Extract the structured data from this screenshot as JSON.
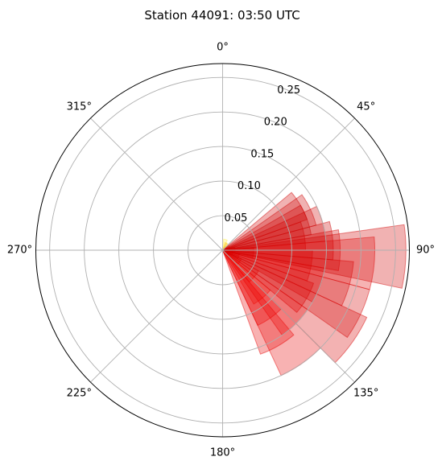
{
  "chart_data": {
    "type": "polar_bar",
    "title": "Station 44091: 03:50 UTC",
    "theta_zero": "N",
    "theta_direction": "clockwise",
    "theta_tick_labels": [
      "0°",
      "45°",
      "90°",
      "135°",
      "180°",
      "225°",
      "270°",
      "315°"
    ],
    "r_ticks": [
      0.05,
      0.1,
      0.15,
      0.2,
      0.25
    ],
    "r_tick_labels": [
      "0.05",
      "0.10",
      "0.15",
      "0.20",
      "0.25"
    ],
    "rlim": [
      0,
      0.27
    ],
    "r_label_angle_deg": 22.5,
    "grid": true,
    "bar_width_deg": 20,
    "bar_alpha": 0.3,
    "bars": [
      {
        "theta": 45,
        "r": 0.007,
        "color": "#ffd21e"
      },
      {
        "theta": 25,
        "r": 0.012,
        "color": "#ffe030"
      },
      {
        "theta": 15,
        "r": 0.016,
        "color": "#fff050"
      },
      {
        "theta": 35,
        "r": 0.011,
        "color": "#ffc020"
      },
      {
        "theta": 60,
        "r": 0.011,
        "color": "#ff9a10"
      },
      {
        "theta": 75,
        "r": 0.01,
        "color": "#ff6a08"
      },
      {
        "theta": 120,
        "r": 0.012,
        "color": "#ff5a00"
      },
      {
        "theta": 100,
        "r": 0.015,
        "color": "#ff3a00"
      },
      {
        "theta": 85,
        "r": 0.018,
        "color": "#ff2a00"
      },
      {
        "theta": 110,
        "r": 0.025,
        "color": "#ff2000"
      },
      {
        "theta": 125,
        "r": 0.03,
        "color": "#ff1800"
      },
      {
        "theta": 95,
        "r": 0.045,
        "color": "#e00000"
      },
      {
        "theta": 130,
        "r": 0.06,
        "color": "#ff1000"
      },
      {
        "theta": 140,
        "r": 0.09,
        "color": "#ff1500"
      },
      {
        "theta": 145,
        "r": 0.12,
        "color": "#f00000"
      },
      {
        "theta": 150,
        "r": 0.16,
        "color": "#e80000"
      },
      {
        "theta": 135,
        "r": 0.15,
        "color": "#ee0000"
      },
      {
        "theta": 120,
        "r": 0.14,
        "color": "#e00000"
      },
      {
        "theta": 110,
        "r": 0.15,
        "color": "#dd0000"
      },
      {
        "theta": 105,
        "r": 0.19,
        "color": "#d80000"
      },
      {
        "theta": 100,
        "r": 0.13,
        "color": "#e40000"
      },
      {
        "theta": 90,
        "r": 0.17,
        "color": "#d40000"
      },
      {
        "theta": 85,
        "r": 0.16,
        "color": "#cc0000"
      },
      {
        "theta": 80,
        "r": 0.12,
        "color": "#dc0000"
      },
      {
        "theta": 75,
        "r": 0.15,
        "color": "#d00000"
      },
      {
        "theta": 70,
        "r": 0.13,
        "color": "#c80000"
      },
      {
        "theta": 65,
        "r": 0.14,
        "color": "#cc0000"
      },
      {
        "theta": 60,
        "r": 0.13,
        "color": "#d00000"
      },
      {
        "theta": 95,
        "r": 0.22,
        "color": "#e00000"
      },
      {
        "theta": 125,
        "r": 0.23,
        "color": "#d80000"
      },
      {
        "theta": 145,
        "r": 0.2,
        "color": "#e80000"
      },
      {
        "theta": 92,
        "r": 0.265,
        "color": "#d00000"
      },
      {
        "theta": 115,
        "r": 0.22,
        "color": "#d40000"
      }
    ]
  }
}
